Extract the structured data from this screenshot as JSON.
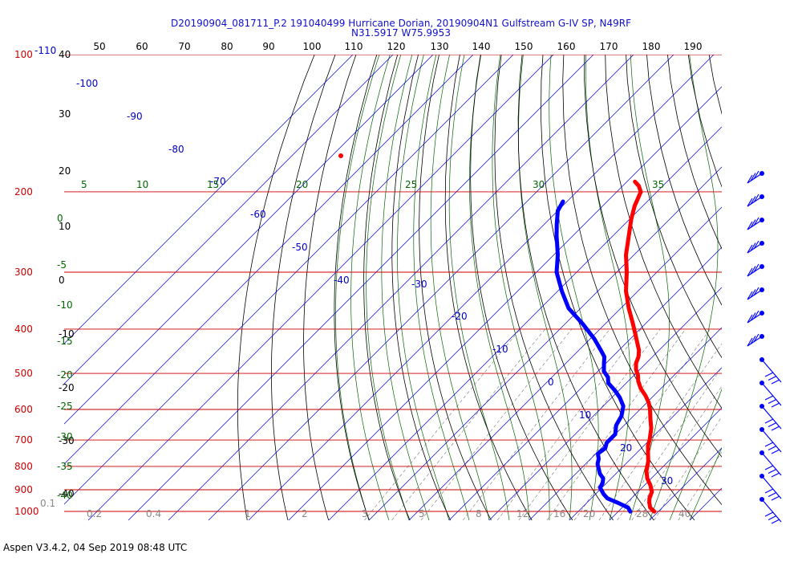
{
  "title": {
    "line1": "D20190904_081711_P.2 191040499 Hurricane Dorian, 20190904N1 Gulfstream G-IV SP, N49RF",
    "line2": "N31.5917 W75.9953"
  },
  "footer": "Aspen V3.4.2, 04 Sep 2019  08:48 UTC",
  "colors": {
    "isobar": "#cc0000",
    "isotherm": "#0000cc",
    "dry_adiabat": "#000000",
    "moist_adiabat": "#006600",
    "mixing_ratio": "#888888",
    "temperature": "#ff0000",
    "dewpoint": "#0000ff",
    "title": "#1010cc"
  },
  "chart_data": {
    "type": "line",
    "diagram": "skew-T log-P",
    "pressure_levels": [
      {
        "p": 100,
        "label": "100"
      },
      {
        "p": 200,
        "label": "200"
      },
      {
        "p": 300,
        "label": "300"
      },
      {
        "p": 400,
        "label": "400"
      },
      {
        "p": 500,
        "label": "500"
      },
      {
        "p": 600,
        "label": "600"
      },
      {
        "p": 700,
        "label": "700"
      },
      {
        "p": 800,
        "label": "800"
      },
      {
        "p": 900,
        "label": "900"
      },
      {
        "p": 1000,
        "label": "1000"
      }
    ],
    "extra_left_label": "-110",
    "potential_temp_ticks": [
      "50",
      "60",
      "70",
      "80",
      "90",
      "100",
      "110",
      "120",
      "130",
      "140",
      "150",
      "160",
      "170",
      "180",
      "190"
    ],
    "temp_left_ticks": [
      "40",
      "30",
      "20",
      "10",
      "0",
      "-10",
      "-20",
      "-30",
      "-40"
    ],
    "isotherm_labels": [
      "-100",
      "-90",
      "-80",
      "-70",
      "-60",
      "-50",
      "-40",
      "-30",
      "-20",
      "-10",
      "0",
      "10",
      "20",
      "30"
    ],
    "moist_top_labels": [
      "5",
      "10",
      "15",
      "20",
      "25",
      "30",
      "35"
    ],
    "moist_left_labels": [
      "0",
      "-5",
      "-10",
      "-15",
      "-20",
      "-25",
      "-30",
      "-35",
      "-40"
    ],
    "mixing_ratio_labels": [
      "0.1",
      "0.2",
      "0.4",
      "1",
      "2",
      "3",
      "5",
      "8",
      "12",
      "16",
      "20",
      "28",
      "40"
    ],
    "temperature": [
      {
        "p": 190,
        "t": -58
      },
      {
        "p": 194,
        "t": -56
      },
      {
        "p": 200,
        "t": -54
      },
      {
        "p": 215,
        "t": -52
      },
      {
        "p": 230,
        "t": -49.5
      },
      {
        "p": 250,
        "t": -46
      },
      {
        "p": 275,
        "t": -42
      },
      {
        "p": 300,
        "t": -37.5
      },
      {
        "p": 330,
        "t": -33
      },
      {
        "p": 360,
        "t": -28
      },
      {
        "p": 390,
        "t": -23
      },
      {
        "p": 420,
        "t": -18.5
      },
      {
        "p": 445,
        "t": -15
      },
      {
        "p": 460,
        "t": -13.5
      },
      {
        "p": 475,
        "t": -12.5
      },
      {
        "p": 490,
        "t": -11
      },
      {
        "p": 505,
        "t": -9
      },
      {
        "p": 520,
        "t": -7.5
      },
      {
        "p": 540,
        "t": -5
      },
      {
        "p": 560,
        "t": -2
      },
      {
        "p": 580,
        "t": 0.5
      },
      {
        "p": 600,
        "t": 2.5
      },
      {
        "p": 630,
        "t": 5
      },
      {
        "p": 660,
        "t": 7.5
      },
      {
        "p": 700,
        "t": 10
      },
      {
        "p": 720,
        "t": 11
      },
      {
        "p": 750,
        "t": 13
      },
      {
        "p": 780,
        "t": 15
      },
      {
        "p": 820,
        "t": 17
      },
      {
        "p": 850,
        "t": 19
      },
      {
        "p": 880,
        "t": 21.5
      },
      {
        "p": 910,
        "t": 23.5
      },
      {
        "p": 940,
        "t": 24.5
      },
      {
        "p": 960,
        "t": 25.5
      },
      {
        "p": 985,
        "t": 27
      },
      {
        "p": 1005,
        "t": 29
      }
    ],
    "dewpoint": [
      {
        "p": 210,
        "t": -71
      },
      {
        "p": 220,
        "t": -70
      },
      {
        "p": 235,
        "t": -67
      },
      {
        "p": 250,
        "t": -64
      },
      {
        "p": 275,
        "t": -59
      },
      {
        "p": 300,
        "t": -55
      },
      {
        "p": 330,
        "t": -49
      },
      {
        "p": 360,
        "t": -43
      },
      {
        "p": 390,
        "t": -35.5
      },
      {
        "p": 420,
        "t": -29
      },
      {
        "p": 445,
        "t": -24.5
      },
      {
        "p": 460,
        "t": -22
      },
      {
        "p": 475,
        "t": -20.5
      },
      {
        "p": 495,
        "t": -18.5
      },
      {
        "p": 510,
        "t": -16
      },
      {
        "p": 525,
        "t": -14.5
      },
      {
        "p": 545,
        "t": -11
      },
      {
        "p": 565,
        "t": -8
      },
      {
        "p": 590,
        "t": -5
      },
      {
        "p": 620,
        "t": -3
      },
      {
        "p": 650,
        "t": -2
      },
      {
        "p": 680,
        "t": 0
      },
      {
        "p": 710,
        "t": 0
      },
      {
        "p": 730,
        "t": 1
      },
      {
        "p": 750,
        "t": 0.5
      },
      {
        "p": 770,
        "t": 2
      },
      {
        "p": 790,
        "t": 3
      },
      {
        "p": 810,
        "t": 4.5
      },
      {
        "p": 830,
        "t": 6
      },
      {
        "p": 850,
        "t": 8
      },
      {
        "p": 870,
        "t": 9
      },
      {
        "p": 890,
        "t": 9.5
      },
      {
        "p": 920,
        "t": 12
      },
      {
        "p": 940,
        "t": 14
      },
      {
        "p": 960,
        "t": 17.5
      },
      {
        "p": 985,
        "t": 21.5
      },
      {
        "p": 1005,
        "t": 23
      }
    ],
    "wind_barbs_count": 15
  }
}
